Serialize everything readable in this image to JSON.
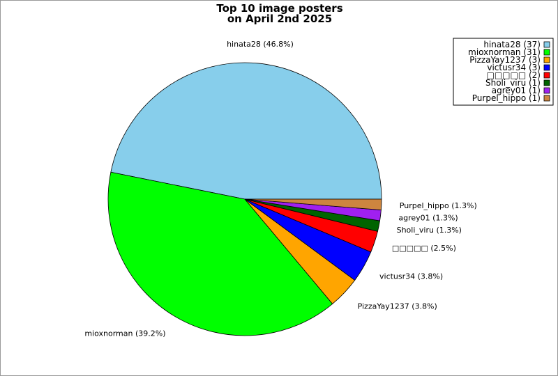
{
  "chart_data": {
    "type": "pie",
    "title_lines": [
      "Top 10 image posters",
      "on April 2nd 2025"
    ],
    "slices": [
      {
        "name": "hinata28",
        "count": 37,
        "percent": 46.8,
        "color": "#87ceeb",
        "label": "hinata28 (46.8%)",
        "legend": "hinata28 (37)"
      },
      {
        "name": "mioxnorman",
        "count": 31,
        "percent": 39.2,
        "color": "#00ff00",
        "label": "mioxnorman (39.2%)",
        "legend": "mioxnorman (31)"
      },
      {
        "name": "PizzaYay1237",
        "count": 3,
        "percent": 3.8,
        "color": "#ffa500",
        "label": "PizzaYay1237 (3.8%)",
        "legend": "PizzaYay1237 (3)"
      },
      {
        "name": "victusr34",
        "count": 3,
        "percent": 3.8,
        "color": "#0000ff",
        "label": "victusr34 (3.8%)",
        "legend": "victusr34 (3)"
      },
      {
        "name": "□□□□□",
        "count": 2,
        "percent": 2.5,
        "color": "#ff0000",
        "label": "□□□□□ (2.5%)",
        "legend": "□□□□□ (2)"
      },
      {
        "name": "Sholi_viru",
        "count": 1,
        "percent": 1.3,
        "color": "#006400",
        "label": "Sholi_viru (1.3%)",
        "legend": "Sholi_viru (1)"
      },
      {
        "name": "agrey01",
        "count": 1,
        "percent": 1.3,
        "color": "#a020f0",
        "label": "agrey01 (1.3%)",
        "legend": "agrey01 (1)"
      },
      {
        "name": "Purpel_hippo",
        "count": 1,
        "percent": 1.3,
        "color": "#cd853f",
        "label": "Purpel_hippo (1.3%)",
        "legend": "Purpel_hippo (1)"
      }
    ],
    "start": "east",
    "direction": "counterclockwise",
    "legend_position": "top-right"
  }
}
